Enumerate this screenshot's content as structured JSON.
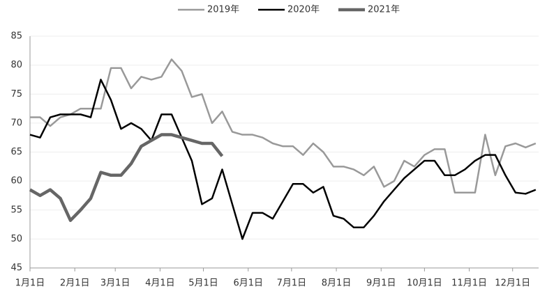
{
  "chart_data": {
    "type": "line",
    "x": [
      0,
      7,
      14,
      21,
      28,
      35,
      42,
      49,
      56,
      63,
      70,
      77,
      84,
      91,
      98,
      105,
      112,
      119,
      126,
      133,
      140,
      147,
      154,
      161,
      168,
      175,
      182,
      189,
      196,
      203,
      210,
      217,
      224,
      231,
      238,
      245,
      252,
      259,
      266,
      273,
      280,
      287,
      294,
      301,
      308,
      315,
      322,
      329,
      336,
      343,
      350
    ],
    "series": [
      {
        "name": "2019年",
        "color": "#999999",
        "width": 2.5,
        "values": [
          71,
          71,
          69.5,
          71,
          71.5,
          72.5,
          72.5,
          72.5,
          79.5,
          79.5,
          76,
          78,
          77.5,
          78,
          81,
          79,
          74.5,
          75,
          70,
          72,
          68.5,
          68,
          68,
          67.5,
          66.5,
          66,
          66,
          64.5,
          66.5,
          65,
          62.5,
          62.5,
          62,
          61,
          62.5,
          59,
          60,
          63.5,
          62.5,
          64.5,
          65.5,
          65.5,
          58,
          58,
          58,
          68,
          61,
          66,
          66.5,
          65.8,
          66.5
        ]
      },
      {
        "name": "2020年",
        "color": "#000000",
        "width": 2.5,
        "values": [
          68,
          67.5,
          71,
          71.5,
          71.5,
          71.5,
          71,
          77.5,
          74,
          69,
          70,
          69,
          67,
          71.5,
          71.5,
          67.5,
          63.5,
          56,
          57,
          62,
          56,
          50,
          54.5,
          54.5,
          53.5,
          56.5,
          59.5,
          59.5,
          58,
          59,
          54,
          53.5,
          52,
          52,
          54,
          56.5,
          58.5,
          60.5,
          62,
          63.5,
          63.5,
          61,
          61,
          62,
          63.5,
          64.5,
          64.5,
          61,
          58,
          57.8,
          58.5
        ]
      },
      {
        "name": "2021年",
        "color": "#666666",
        "width": 4.5,
        "values": [
          58.5,
          57.5,
          58.5,
          57,
          53.2,
          55,
          57,
          61.5,
          61,
          61,
          63,
          66,
          67,
          68,
          68,
          67.5,
          67,
          66.5,
          66.5,
          64.3,
          null,
          null,
          null,
          null,
          null,
          null,
          null,
          null,
          null,
          null,
          null,
          null,
          null,
          null,
          null,
          null,
          null,
          null,
          null,
          null,
          null,
          null,
          null,
          null,
          null,
          null,
          null,
          null,
          null,
          null,
          null
        ]
      }
    ],
    "xlim": [
      0,
      352
    ],
    "xticks": [
      {
        "value": 0,
        "label": "1月1日"
      },
      {
        "value": 31,
        "label": "2月1日"
      },
      {
        "value": 59,
        "label": "3月1日"
      },
      {
        "value": 90,
        "label": "4月1日"
      },
      {
        "value": 120,
        "label": "5月1日"
      },
      {
        "value": 151,
        "label": "6月1日"
      },
      {
        "value": 181,
        "label": "7月1日"
      },
      {
        "value": 212,
        "label": "8月1日"
      },
      {
        "value": 243,
        "label": "9月1日"
      },
      {
        "value": 273,
        "label": "10月1日"
      },
      {
        "value": 304,
        "label": "11月1日"
      },
      {
        "value": 334,
        "label": "12月1日"
      }
    ],
    "ylim": [
      45,
      85
    ],
    "yticks": [
      45,
      50,
      55,
      60,
      65,
      70,
      75,
      80,
      85
    ],
    "grid": true
  }
}
